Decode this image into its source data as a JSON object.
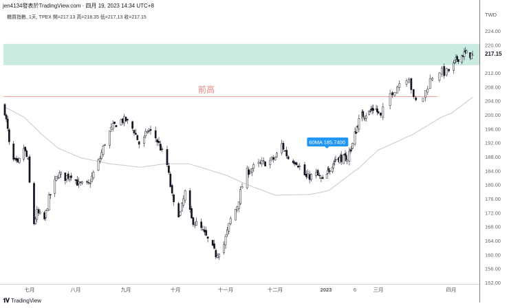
{
  "header": {
    "attribution": "jen4134發表於TradingView.com · 四月 19, 2023 14:34 UTC+8"
  },
  "legend": {
    "text": "櫃買指數, 1天, TPEX  開=217.13  高=218.35  低=217.13  收=217.15"
  },
  "footer": {
    "brand": "TradingView",
    "logo_mark": "TV"
  },
  "colors": {
    "up_fill": "#ffffff",
    "candle_border": "#131722",
    "down_fill": "#131722",
    "ma": "#c8c8c8",
    "band": "#c9ebe2",
    "line": "#f19b9b",
    "line_label": "#f08080",
    "tooltip": "#2196f3",
    "grid_axis": "#787b86"
  },
  "chart_data": {
    "type": "candlestick",
    "title": "櫃買指數, 1天, TPEX",
    "currency_label": "TWD",
    "ylim": [
      152,
      226
    ],
    "y_ticks": [
      "224.00",
      "220.00",
      "216.00",
      "212.00",
      "208.00",
      "204.00",
      "200.00",
      "196.00",
      "192.00",
      "188.00",
      "184.00",
      "180.00",
      "176.00",
      "172.00",
      "168.00",
      "164.00",
      "160.00",
      "156.00",
      "152.00"
    ],
    "x_ticks": [
      {
        "label": "七月",
        "date": "2022-07-01"
      },
      {
        "label": "八月",
        "date": "2022-08-01"
      },
      {
        "label": "九月",
        "date": "2022-09-01"
      },
      {
        "label": "十月",
        "date": "2022-10-01"
      },
      {
        "label": "十一月",
        "date": "2022-11-01"
      },
      {
        "label": "十二月",
        "date": "2022-12-01"
      },
      {
        "label": "2023",
        "date": "2023-01-01"
      },
      {
        "label": "6",
        "date": "2023-02-06"
      },
      {
        "label": "三月",
        "date": "2023-03-01"
      },
      {
        "label": "四月",
        "date": "2023-04-01"
      }
    ],
    "last_price": "217.15",
    "last_ohlc": {
      "open": 217.13,
      "high": 218.35,
      "low": 217.13,
      "close": 217.15
    },
    "close_path": [
      [
        "2022-06-14",
        201
      ],
      [
        "2022-06-16",
        195.5
      ],
      [
        "2022-06-18",
        187.6
      ],
      [
        "2022-06-23",
        185.6
      ],
      [
        "2022-06-27",
        190.5
      ],
      [
        "2022-06-30",
        186.6
      ],
      [
        "2022-07-02",
        174
      ],
      [
        "2022-07-04",
        169
      ],
      [
        "2022-07-06",
        172
      ],
      [
        "2022-07-11",
        170
      ],
      [
        "2022-07-14",
        176
      ],
      [
        "2022-07-20",
        183
      ],
      [
        "2022-07-25",
        182
      ],
      [
        "2022-07-29",
        183
      ],
      [
        "2022-08-03",
        180
      ],
      [
        "2022-08-09",
        180
      ],
      [
        "2022-08-16",
        187.6
      ],
      [
        "2022-08-20",
        193.5
      ],
      [
        "2022-08-24",
        196.5
      ],
      [
        "2022-08-28",
        198.4
      ],
      [
        "2022-09-01",
        198.4
      ],
      [
        "2022-09-06",
        195.5
      ],
      [
        "2022-09-10",
        190.5
      ],
      [
        "2022-09-14",
        195.5
      ],
      [
        "2022-09-18",
        194.5
      ],
      [
        "2022-09-22",
        190.5
      ],
      [
        "2022-09-26",
        185.6
      ],
      [
        "2022-09-29",
        176.7
      ],
      [
        "2022-10-01",
        171.8
      ],
      [
        "2022-10-04",
        171.8
      ],
      [
        "2022-10-07",
        177.7
      ],
      [
        "2022-10-11",
        170
      ],
      [
        "2022-10-16",
        168
      ],
      [
        "2022-10-20",
        165
      ],
      [
        "2022-10-26",
        160
      ],
      [
        "2022-10-31",
        163
      ],
      [
        "2022-11-04",
        170
      ],
      [
        "2022-11-08",
        174
      ],
      [
        "2022-11-11",
        179.7
      ],
      [
        "2022-11-14",
        183.6
      ],
      [
        "2022-11-20",
        185.6
      ],
      [
        "2022-11-27",
        186.6
      ],
      [
        "2022-12-01",
        187.6
      ],
      [
        "2022-12-05",
        191.5
      ],
      [
        "2022-12-09",
        187.6
      ],
      [
        "2022-12-14",
        186.6
      ],
      [
        "2022-12-20",
        182
      ],
      [
        "2022-12-26",
        183
      ],
      [
        "2022-12-30",
        181
      ],
      [
        "2023-01-06",
        185
      ],
      [
        "2023-01-14",
        187.6
      ],
      [
        "2023-01-27",
        187.6
      ],
      [
        "2023-02-03",
        191.5
      ],
      [
        "2023-02-09",
        197.4
      ],
      [
        "2023-02-12",
        199.8
      ],
      [
        "2023-02-19",
        200.4
      ],
      [
        "2023-02-26",
        202.4
      ],
      [
        "2023-03-02",
        199.3
      ],
      [
        "2023-03-05",
        205.3
      ],
      [
        "2023-03-08",
        207.3
      ],
      [
        "2023-03-11",
        210
      ],
      [
        "2023-03-14",
        211
      ],
      [
        "2023-03-16",
        204.3
      ],
      [
        "2023-03-18",
        203.3
      ],
      [
        "2023-03-20",
        205
      ],
      [
        "2023-03-23",
        210
      ],
      [
        "2023-03-26",
        213
      ],
      [
        "2023-03-29",
        212
      ],
      [
        "2023-04-01",
        213
      ],
      [
        "2023-04-06",
        216
      ],
      [
        "2023-04-12",
        217.5
      ],
      [
        "2023-04-19",
        217.15
      ]
    ],
    "ma60_path": [
      [
        "2022-06-13",
        202.4
      ],
      [
        "2022-06-27",
        199.4
      ],
      [
        "2022-07-09",
        194.5
      ],
      [
        "2022-07-20",
        190.5
      ],
      [
        "2022-08-05",
        187.6
      ],
      [
        "2022-08-22",
        186
      ],
      [
        "2022-09-10",
        185
      ],
      [
        "2022-09-25",
        186
      ],
      [
        "2022-10-09",
        186
      ],
      [
        "2022-10-20",
        184.5
      ],
      [
        "2022-11-02",
        182.6
      ],
      [
        "2022-11-14",
        180
      ],
      [
        "2022-12-01",
        177
      ],
      [
        "2022-12-22",
        177.2
      ],
      [
        "2023-01-06",
        178.6
      ],
      [
        "2023-02-09",
        184.5
      ],
      [
        "2023-03-03",
        190.5
      ],
      [
        "2023-03-16",
        194.5
      ],
      [
        "2023-03-28",
        199.4
      ],
      [
        "2023-04-19",
        205
      ]
    ],
    "resistance_zone": [
      214.2,
      220.3
    ],
    "prior_high_line": {
      "price": 205.3,
      "label": "前高",
      "end_date": "2023-03-26"
    },
    "ma_tooltip": {
      "text": "60MA 185.7400",
      "date": "2023-01-27"
    }
  }
}
